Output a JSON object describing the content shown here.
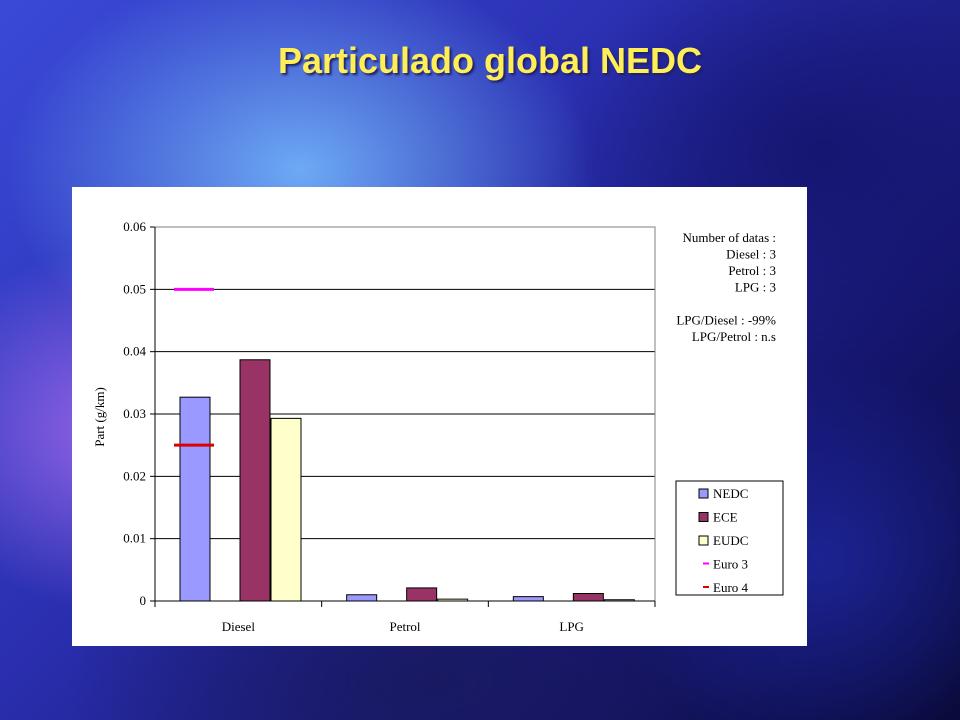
{
  "slide": {
    "title": "Particulado global NEDC"
  },
  "chart_data": {
    "type": "bar",
    "categories": [
      "Diesel",
      "Petrol",
      "LPG"
    ],
    "series": [
      {
        "name": "NEDC",
        "values": [
          0.0327,
          0.001,
          0.0007
        ],
        "color": "#9999ff"
      },
      {
        "name": "ECE",
        "values": [
          0.0387,
          0.0021,
          0.0012
        ],
        "color": "#993366"
      },
      {
        "name": "EUDC",
        "values": [
          0.0293,
          0.0003,
          0.0002
        ],
        "color": "#ffffcc"
      }
    ],
    "limits": [
      {
        "name": "Euro 3",
        "category": "Diesel",
        "value": 0.05,
        "color": "#ff00ff"
      },
      {
        "name": "Euro 4",
        "category": "Diesel",
        "value": 0.025,
        "color": "#dd0000"
      }
    ],
    "ylabel": "Part (g/km)",
    "xlabel": "",
    "ylim": [
      0,
      0.06
    ],
    "yticks": [
      "0",
      "0.01",
      "0.02",
      "0.03",
      "0.04",
      "0.05",
      "0.06"
    ],
    "grid": true,
    "legend_position": "bottom-right",
    "annotation": {
      "lines": [
        "Number of datas :",
        "Diesel : 3",
        "Petrol : 3",
        "LPG : 3",
        "",
        "LPG/Diesel : -99%",
        "LPG/Petrol : n.s"
      ]
    }
  }
}
